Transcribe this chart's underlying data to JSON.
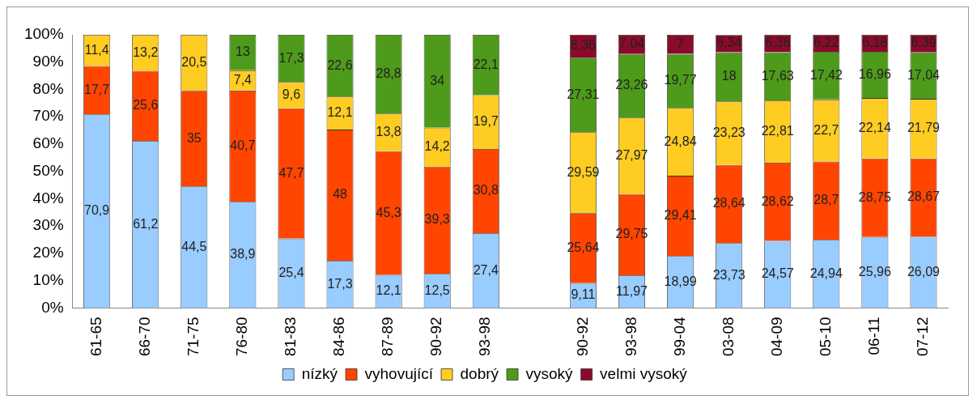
{
  "chart_data": {
    "type": "bar",
    "stacked": true,
    "categories": [
      "61-65",
      "66-70",
      "71-75",
      "76-80",
      "81-83",
      "84-86",
      "87-89",
      "90-92",
      "93-98",
      null,
      "90-92",
      "93-98",
      "99-04",
      "03-08",
      "04-09",
      "05-10",
      "06-11",
      "07-12"
    ],
    "ylim": [
      0,
      100
    ],
    "yticks": [
      {
        "value": 0,
        "label": "0%"
      },
      {
        "value": 10,
        "label": "10%"
      },
      {
        "value": 20,
        "label": "20%"
      },
      {
        "value": 30,
        "label": "30%"
      },
      {
        "value": 40,
        "label": "40%"
      },
      {
        "value": 50,
        "label": "50%"
      },
      {
        "value": 60,
        "label": "60%"
      },
      {
        "value": 70,
        "label": "70%"
      },
      {
        "value": 80,
        "label": "80%"
      },
      {
        "value": 90,
        "label": "90%"
      },
      {
        "value": 100,
        "label": "100%"
      }
    ],
    "grid": false,
    "legend": "bottom",
    "series": [
      {
        "name": "nízký",
        "color": "#99ccff",
        "values": [
          70.9,
          61.2,
          44.5,
          38.9,
          25.4,
          17.3,
          12.1,
          12.5,
          27.4,
          null,
          9.11,
          11.97,
          18.99,
          23.73,
          24.57,
          24.94,
          25.96,
          26.09
        ],
        "value_labels": [
          "70,9",
          "61,2",
          "44,5",
          "38,9",
          "25,4",
          "17,3",
          "12,1",
          "12,5",
          "27,4",
          null,
          "9,11",
          "11,97",
          "18,99",
          "23,73",
          "24,57",
          "24,94",
          "25,96",
          "26,09"
        ]
      },
      {
        "name": "vyhovující",
        "color": "#ff4500",
        "values": [
          17.7,
          25.6,
          35,
          40.7,
          47.7,
          48,
          45.3,
          39.3,
          30.8,
          null,
          25.64,
          29.75,
          29.41,
          28.64,
          28.62,
          28.7,
          28.75,
          28.67
        ],
        "value_labels": [
          "17,7",
          "25,6",
          "35",
          "40,7",
          "47,7",
          "48",
          "45,3",
          "39,3",
          "30,8",
          null,
          "25,64",
          "29,75",
          "29,41",
          "28,64",
          "28,62",
          "28,7",
          "28,75",
          "28,67"
        ]
      },
      {
        "name": "dobrý",
        "color": "#ffcc22",
        "values": [
          11.4,
          13.2,
          20.5,
          7.4,
          9.6,
          12.1,
          13.8,
          14.2,
          19.7,
          null,
          29.59,
          27.97,
          24.84,
          23.23,
          22.81,
          22.7,
          22.14,
          21.79
        ],
        "value_labels": [
          "11,4",
          "13,2",
          "20,5",
          "7,4",
          "9,6",
          "12,1",
          "13,8",
          "14,2",
          "19,7",
          null,
          "29,59",
          "27,97",
          "24,84",
          "23,23",
          "22,81",
          "22,7",
          "22,14",
          "21,79"
        ]
      },
      {
        "name": "vysoký",
        "color": "#4e9a1a",
        "values": [
          null,
          null,
          null,
          13,
          17.3,
          22.6,
          28.8,
          34,
          22.1,
          null,
          27.31,
          23.26,
          19.77,
          18,
          17.63,
          17.42,
          16.96,
          17.04
        ],
        "value_labels": [
          null,
          null,
          null,
          "13",
          "17,3",
          "22,6",
          "28,8",
          "34",
          "22,1",
          null,
          "27,31",
          "23,26",
          "19,77",
          "18",
          "17,63",
          "17,42",
          "16,96",
          "17,04"
        ]
      },
      {
        "name": "velmi vysoký",
        "color": "#8b0a2a",
        "values": [
          null,
          null,
          null,
          null,
          null,
          null,
          null,
          null,
          null,
          null,
          8.36,
          7.04,
          7,
          6.34,
          6.36,
          6.22,
          6.18,
          6.39
        ],
        "value_labels": [
          null,
          null,
          null,
          null,
          null,
          null,
          null,
          null,
          null,
          null,
          "8,36",
          "7,04",
          "7",
          "6,34",
          "6,36",
          "6,22",
          "6,18",
          "6,39"
        ]
      }
    ]
  }
}
